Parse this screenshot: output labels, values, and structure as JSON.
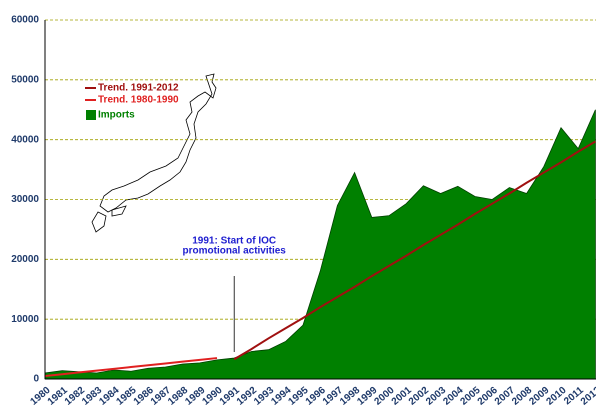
{
  "chart_data": {
    "type": "area",
    "categories": [
      "1980",
      "1981",
      "1982",
      "1983",
      "1984",
      "1985",
      "1986",
      "1987",
      "1988",
      "1989",
      "1990",
      "1991",
      "1992",
      "1993",
      "1994",
      "1995",
      "1996",
      "1997",
      "1998",
      "1999",
      "2000",
      "2001",
      "2002",
      "2003",
      "2004",
      "2005",
      "2006",
      "2007",
      "2008",
      "2009",
      "2010",
      "2011",
      "2012"
    ],
    "series": [
      {
        "name": "Imports",
        "color": "#008000",
        "values": [
          1000,
          1400,
          1200,
          1000,
          1500,
          1300,
          1800,
          2000,
          2500,
          2700,
          3200,
          3500,
          4600,
          4900,
          6300,
          9000,
          18000,
          29000,
          34500,
          27000,
          27300,
          29300,
          32300,
          31000,
          32200,
          30500,
          30000,
          32000,
          31000,
          35500,
          42000,
          38500,
          45000
        ]
      },
      {
        "name": "Trend. 1980-1990",
        "color": "#e02020",
        "values": [
          500,
          800,
          1100,
          1400,
          1700,
          2000,
          2300,
          2600,
          2900,
          3200,
          3500,
          null,
          null,
          null,
          null,
          null,
          null,
          null,
          null,
          null,
          null,
          null,
          null,
          null,
          null,
          null,
          null,
          null,
          null,
          null,
          null,
          null,
          null
        ]
      },
      {
        "name": "Trend. 1991-2012",
        "color": "#a01010",
        "values": [
          null,
          null,
          null,
          null,
          null,
          null,
          null,
          null,
          null,
          null,
          null,
          3300,
          5000,
          6800,
          8500,
          10200,
          12000,
          13700,
          15400,
          17200,
          18900,
          20600,
          22400,
          24100,
          25800,
          27600,
          29300,
          31000,
          32800,
          34500,
          36200,
          38000,
          39700
        ]
      }
    ],
    "annotation": [
      "1991: Start of IOC",
      "promotional activities"
    ],
    "annotation_x": "1991",
    "ylim": [
      0,
      60000
    ],
    "yticks": [
      0,
      10000,
      20000,
      30000,
      40000,
      50000,
      60000
    ],
    "grid": true
  }
}
